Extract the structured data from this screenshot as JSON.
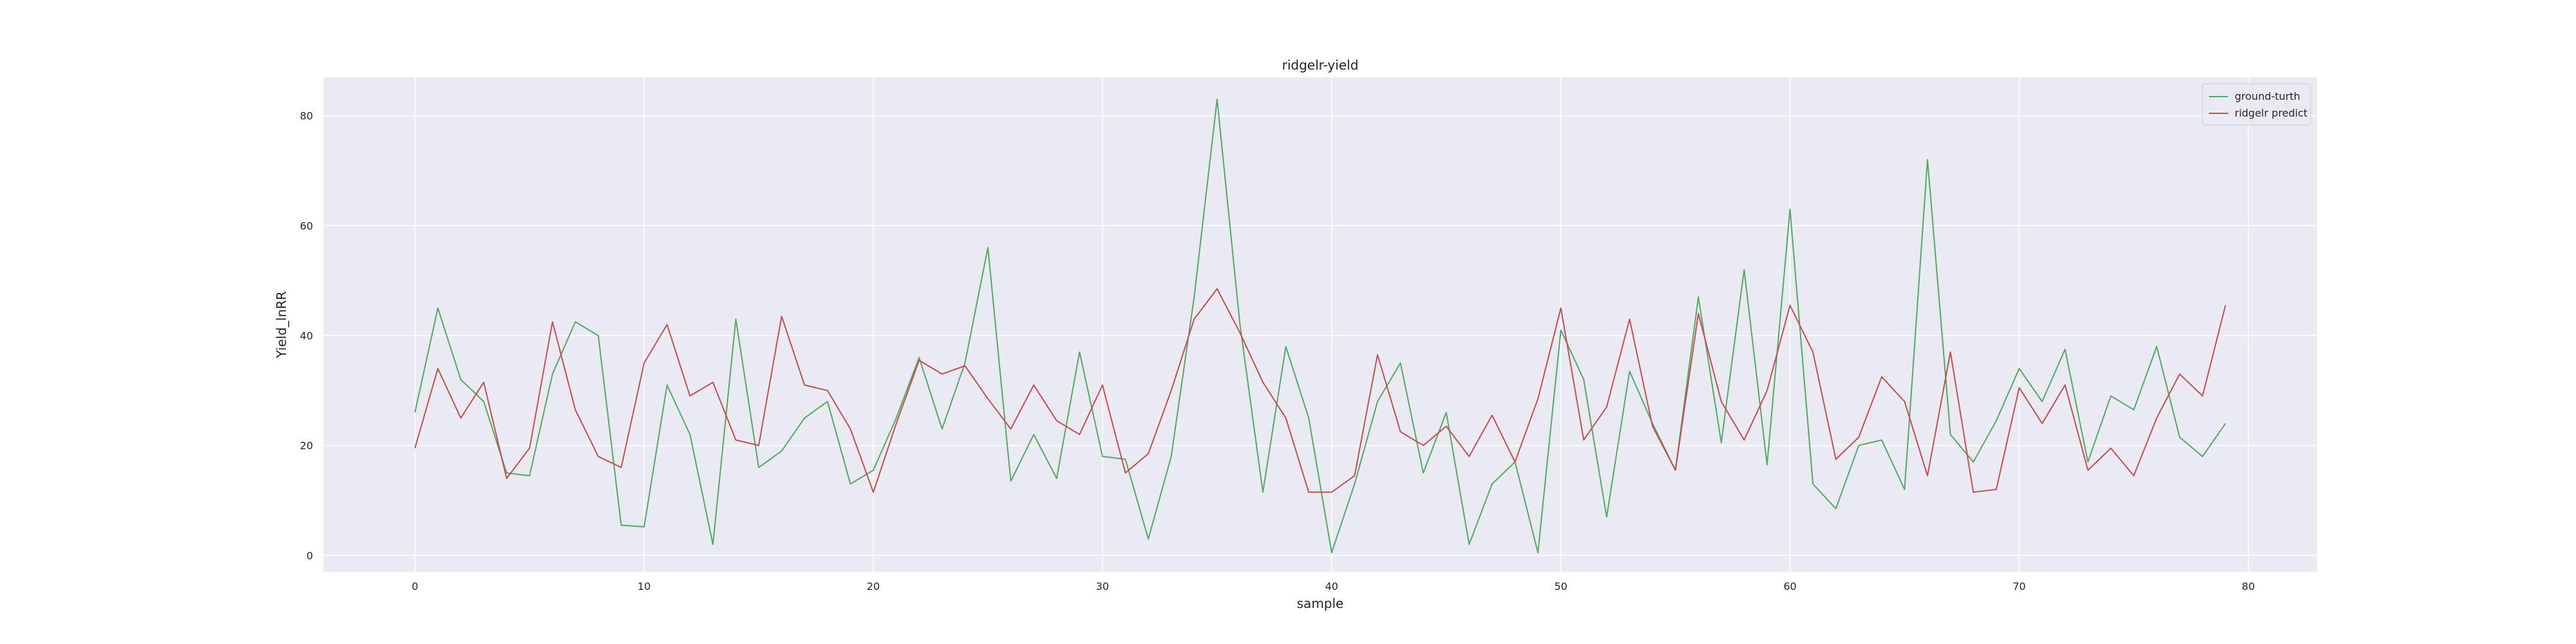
{
  "chart_data": {
    "type": "line",
    "title": "ridgelr-yield",
    "xlabel": "sample",
    "ylabel": "Yield_lnRR",
    "xlim": [
      -4,
      83
    ],
    "ylim": [
      -3,
      87
    ],
    "xticks": [
      0,
      10,
      20,
      30,
      40,
      50,
      60,
      70,
      80
    ],
    "yticks": [
      0,
      20,
      40,
      60,
      80
    ],
    "grid": true,
    "legend_position": "top-right",
    "x": [
      0,
      1,
      2,
      3,
      4,
      5,
      6,
      7,
      8,
      9,
      10,
      11,
      12,
      13,
      14,
      15,
      16,
      17,
      18,
      19,
      20,
      21,
      22,
      23,
      24,
      25,
      26,
      27,
      28,
      29,
      30,
      31,
      32,
      33,
      34,
      35,
      36,
      37,
      38,
      39,
      40,
      41,
      42,
      43,
      44,
      45,
      46,
      47,
      48,
      49,
      50,
      51,
      52,
      53,
      54,
      55,
      56,
      57,
      58,
      59,
      60,
      61,
      62,
      63,
      64,
      65,
      66,
      67,
      68,
      69,
      70,
      71,
      72,
      73,
      74,
      75,
      76,
      77,
      78,
      79
    ],
    "series": [
      {
        "name": "ground-turth",
        "color": "#55a868",
        "values": [
          26,
          45,
          32,
          28,
          15,
          14.5,
          33,
          42.5,
          40,
          5.5,
          5.2,
          31,
          22,
          2,
          43,
          16,
          19,
          25,
          28,
          13,
          15.5,
          25,
          36,
          23,
          35,
          56,
          13.5,
          22,
          14,
          37,
          18,
          17.5,
          3,
          18,
          47,
          83,
          42,
          11.5,
          38,
          25,
          0.5,
          13,
          28,
          35,
          15,
          26,
          2,
          13,
          17,
          0.5,
          41,
          32,
          7,
          33.5,
          24,
          15.5,
          47,
          20.5,
          52,
          16.5,
          63,
          13,
          8.5,
          20,
          21,
          12,
          72,
          22,
          17,
          24.5,
          34,
          28,
          37.5,
          17,
          29,
          26.5,
          38,
          21.5,
          18,
          24
        ]
      },
      {
        "name": "ridgelr predict",
        "color": "#c44e52",
        "values": [
          19.5,
          34,
          25,
          31.5,
          14,
          19.5,
          42.5,
          26.5,
          18,
          16,
          35,
          42,
          29,
          31.5,
          21,
          20,
          43.5,
          31,
          30,
          23,
          11.5,
          24,
          35.5,
          33,
          34.5,
          28.5,
          23,
          31,
          24.5,
          22,
          31,
          15,
          18.5,
          30,
          43,
          48.5,
          40.5,
          31.5,
          25,
          11.5,
          11.5,
          14.5,
          36.5,
          22.5,
          20,
          23.5,
          18,
          25.5,
          17,
          28.5,
          45,
          21,
          27,
          43,
          23.5,
          15.5,
          44,
          28,
          21,
          30,
          45.5,
          37,
          17.5,
          21.5,
          32.5,
          28,
          14.5,
          37,
          11.5,
          12,
          30.5,
          24,
          31,
          15.5,
          19.5,
          14.5,
          25,
          33,
          29,
          45.5
        ]
      }
    ]
  }
}
